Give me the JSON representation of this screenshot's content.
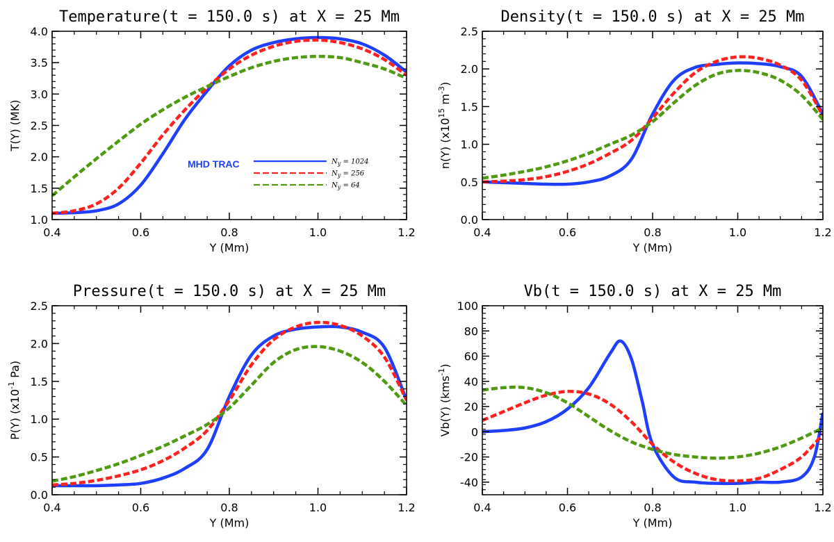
{
  "colors": {
    "blue": "#1f3fff",
    "red": "#ff2020",
    "green": "#4f9a10"
  },
  "legend": {
    "title": "MHD TRAC",
    "entries": [
      {
        "label": "N_y = 1024",
        "sym": "N",
        "sub": "y",
        "eq": " = 1024",
        "color": "#1f3fff",
        "dash": false
      },
      {
        "label": "N_y = 256",
        "sym": "N",
        "sub": "y",
        "eq": " = 256",
        "color": "#ff2020",
        "dash": true
      },
      {
        "label": "N_y = 64",
        "sym": "N",
        "sub": "y",
        "eq": " = 64",
        "color": "#4f9a10",
        "dash": true
      }
    ]
  },
  "chart_data": [
    {
      "id": "temperature",
      "type": "line",
      "title": "Temperature(t = 150.0 s) at X = 25 Mm",
      "xlabel": "Y (Mm)",
      "ylabel": "T(Y) (MK)",
      "xlim": [
        0.4,
        1.2
      ],
      "ylim": [
        1.0,
        4.0
      ],
      "xticks": [
        "0.4",
        "0.6",
        "0.8",
        "1.0",
        "1.2"
      ],
      "yticks": [
        "1.0",
        "1.5",
        "2.0",
        "2.5",
        "3.0",
        "3.5",
        "4.0"
      ],
      "x": [
        0.4,
        0.45,
        0.5,
        0.55,
        0.6,
        0.65,
        0.7,
        0.75,
        0.8,
        0.85,
        0.9,
        0.95,
        1.0,
        1.05,
        1.1,
        1.15,
        1.2
      ],
      "series": [
        {
          "name": "N_y = 1024",
          "color": "#1f3fff",
          "values": [
            1.1,
            1.11,
            1.14,
            1.25,
            1.55,
            2.05,
            2.6,
            3.05,
            3.45,
            3.7,
            3.82,
            3.88,
            3.9,
            3.88,
            3.8,
            3.62,
            3.35
          ]
        },
        {
          "name": "N_y = 256",
          "color": "#ff2020",
          "values": [
            1.1,
            1.14,
            1.25,
            1.5,
            1.9,
            2.35,
            2.75,
            3.1,
            3.4,
            3.62,
            3.76,
            3.84,
            3.86,
            3.82,
            3.72,
            3.55,
            3.3
          ]
        },
        {
          "name": "N_y = 64",
          "color": "#4f9a10",
          "values": [
            1.38,
            1.68,
            1.97,
            2.25,
            2.52,
            2.75,
            2.95,
            3.12,
            3.28,
            3.42,
            3.52,
            3.58,
            3.6,
            3.58,
            3.5,
            3.4,
            3.25
          ]
        }
      ]
    },
    {
      "id": "density",
      "type": "line",
      "title": "Density(t = 150.0 s) at X = 25 Mm",
      "xlabel": "Y (Mm)",
      "ylabel": "n(Y) (x10^15 m^-3)",
      "ylabel_parts": {
        "pre": "n(Y) (x10",
        "sup1": "15",
        "mid": " m",
        "sup2": "-3",
        "post": ")"
      },
      "xlim": [
        0.4,
        1.2
      ],
      "ylim": [
        0.0,
        2.5
      ],
      "xticks": [
        "0.4",
        "0.6",
        "0.8",
        "1.0",
        "1.2"
      ],
      "yticks": [
        "0.0",
        "0.5",
        "1.0",
        "1.5",
        "2.0",
        "2.5"
      ],
      "x": [
        0.4,
        0.45,
        0.5,
        0.55,
        0.6,
        0.65,
        0.7,
        0.75,
        0.8,
        0.85,
        0.9,
        0.95,
        1.0,
        1.05,
        1.1,
        1.15,
        1.2
      ],
      "series": [
        {
          "name": "N_y = 1024",
          "color": "#1f3fff",
          "values": [
            0.5,
            0.49,
            0.48,
            0.47,
            0.47,
            0.5,
            0.58,
            0.8,
            1.4,
            1.85,
            2.02,
            2.06,
            2.08,
            2.07,
            2.03,
            1.9,
            1.4
          ]
        },
        {
          "name": "N_y = 256",
          "color": "#ff2020",
          "values": [
            0.5,
            0.51,
            0.53,
            0.57,
            0.64,
            0.74,
            0.88,
            1.05,
            1.35,
            1.68,
            1.95,
            2.1,
            2.16,
            2.14,
            2.05,
            1.85,
            1.38
          ]
        },
        {
          "name": "N_y = 64",
          "color": "#4f9a10",
          "values": [
            0.55,
            0.59,
            0.64,
            0.7,
            0.78,
            0.88,
            1.0,
            1.12,
            1.3,
            1.55,
            1.78,
            1.93,
            1.98,
            1.95,
            1.85,
            1.65,
            1.33
          ]
        }
      ]
    },
    {
      "id": "pressure",
      "type": "line",
      "title": "Pressure(t = 150.0 s) at X = 25 Mm",
      "xlabel": "Y (Mm)",
      "ylabel": "P(Y) (x10^-1 Pa)",
      "ylabel_parts": {
        "pre": "P(Y) (x10",
        "sup1": "-1",
        "mid": " Pa)",
        "sup2": "",
        "post": ""
      },
      "xlim": [
        0.4,
        1.2
      ],
      "ylim": [
        0.0,
        2.5
      ],
      "xticks": [
        "0.4",
        "0.6",
        "0.8",
        "1.0",
        "1.2"
      ],
      "yticks": [
        "0.0",
        "0.5",
        "1.0",
        "1.5",
        "2.0",
        "2.5"
      ],
      "x": [
        0.4,
        0.45,
        0.5,
        0.55,
        0.6,
        0.65,
        0.7,
        0.75,
        0.8,
        0.85,
        0.9,
        0.95,
        1.0,
        1.05,
        1.1,
        1.15,
        1.2
      ],
      "series": [
        {
          "name": "N_y = 1024",
          "color": "#1f3fff",
          "values": [
            0.12,
            0.12,
            0.12,
            0.13,
            0.15,
            0.22,
            0.35,
            0.6,
            1.3,
            1.85,
            2.1,
            2.19,
            2.22,
            2.22,
            2.15,
            1.95,
            1.25
          ]
        },
        {
          "name": "N_y = 256",
          "color": "#ff2020",
          "values": [
            0.13,
            0.15,
            0.19,
            0.25,
            0.33,
            0.45,
            0.62,
            0.85,
            1.25,
            1.72,
            2.05,
            2.22,
            2.28,
            2.24,
            2.1,
            1.82,
            1.25
          ]
        },
        {
          "name": "N_y = 64",
          "color": "#4f9a10",
          "values": [
            0.18,
            0.24,
            0.32,
            0.41,
            0.52,
            0.64,
            0.78,
            0.93,
            1.15,
            1.45,
            1.75,
            1.92,
            1.96,
            1.9,
            1.75,
            1.5,
            1.18
          ]
        }
      ]
    },
    {
      "id": "velocity",
      "type": "line",
      "title": "Vb(t = 150.0 s) at X = 25 Mm",
      "xlabel": "Y (Mm)",
      "ylabel": "Vb(Y) (kms^-1)",
      "ylabel_parts": {
        "pre": "Vb(Y) (kms",
        "sup1": "-1",
        "mid": ")",
        "sup2": "",
        "post": ""
      },
      "xlim": [
        0.4,
        1.2
      ],
      "ylim": [
        -50,
        100
      ],
      "xticks": [
        "0.4",
        "0.6",
        "0.8",
        "1.0",
        "1.2"
      ],
      "yticks": [
        "-40",
        "-20",
        "0",
        "20",
        "40",
        "60",
        "80",
        "100"
      ],
      "x": [
        0.4,
        0.45,
        0.5,
        0.55,
        0.6,
        0.65,
        0.7,
        0.725,
        0.75,
        0.775,
        0.8,
        0.85,
        0.9,
        0.95,
        1.0,
        1.05,
        1.1,
        1.15,
        1.18,
        1.2
      ],
      "series": [
        {
          "name": "N_y = 1024",
          "color": "#1f3fff",
          "values": [
            0,
            1,
            3,
            8,
            18,
            35,
            62,
            72,
            58,
            25,
            -10,
            -36,
            -40,
            -41,
            -41,
            -40,
            -40,
            -36,
            -20,
            15
          ]
        },
        {
          "name": "N_y = 256",
          "color": "#ff2020",
          "x": [
            0.4,
            0.45,
            0.5,
            0.55,
            0.6,
            0.65,
            0.7,
            0.75,
            0.8,
            0.85,
            0.9,
            0.95,
            1.0,
            1.05,
            1.1,
            1.15,
            1.2
          ],
          "values": [
            9,
            16,
            23,
            29,
            32,
            30,
            22,
            8,
            -10,
            -24,
            -33,
            -38,
            -39,
            -37,
            -30,
            -20,
            -2
          ]
        },
        {
          "name": "N_y = 64",
          "color": "#4f9a10",
          "x": [
            0.4,
            0.45,
            0.5,
            0.55,
            0.6,
            0.65,
            0.7,
            0.75,
            0.8,
            0.85,
            0.9,
            0.95,
            1.0,
            1.05,
            1.1,
            1.15,
            1.2
          ],
          "values": [
            33,
            35,
            35,
            31,
            23,
            12,
            1,
            -8,
            -14,
            -18,
            -20,
            -21,
            -20,
            -17,
            -12,
            -5,
            3
          ]
        }
      ]
    }
  ]
}
